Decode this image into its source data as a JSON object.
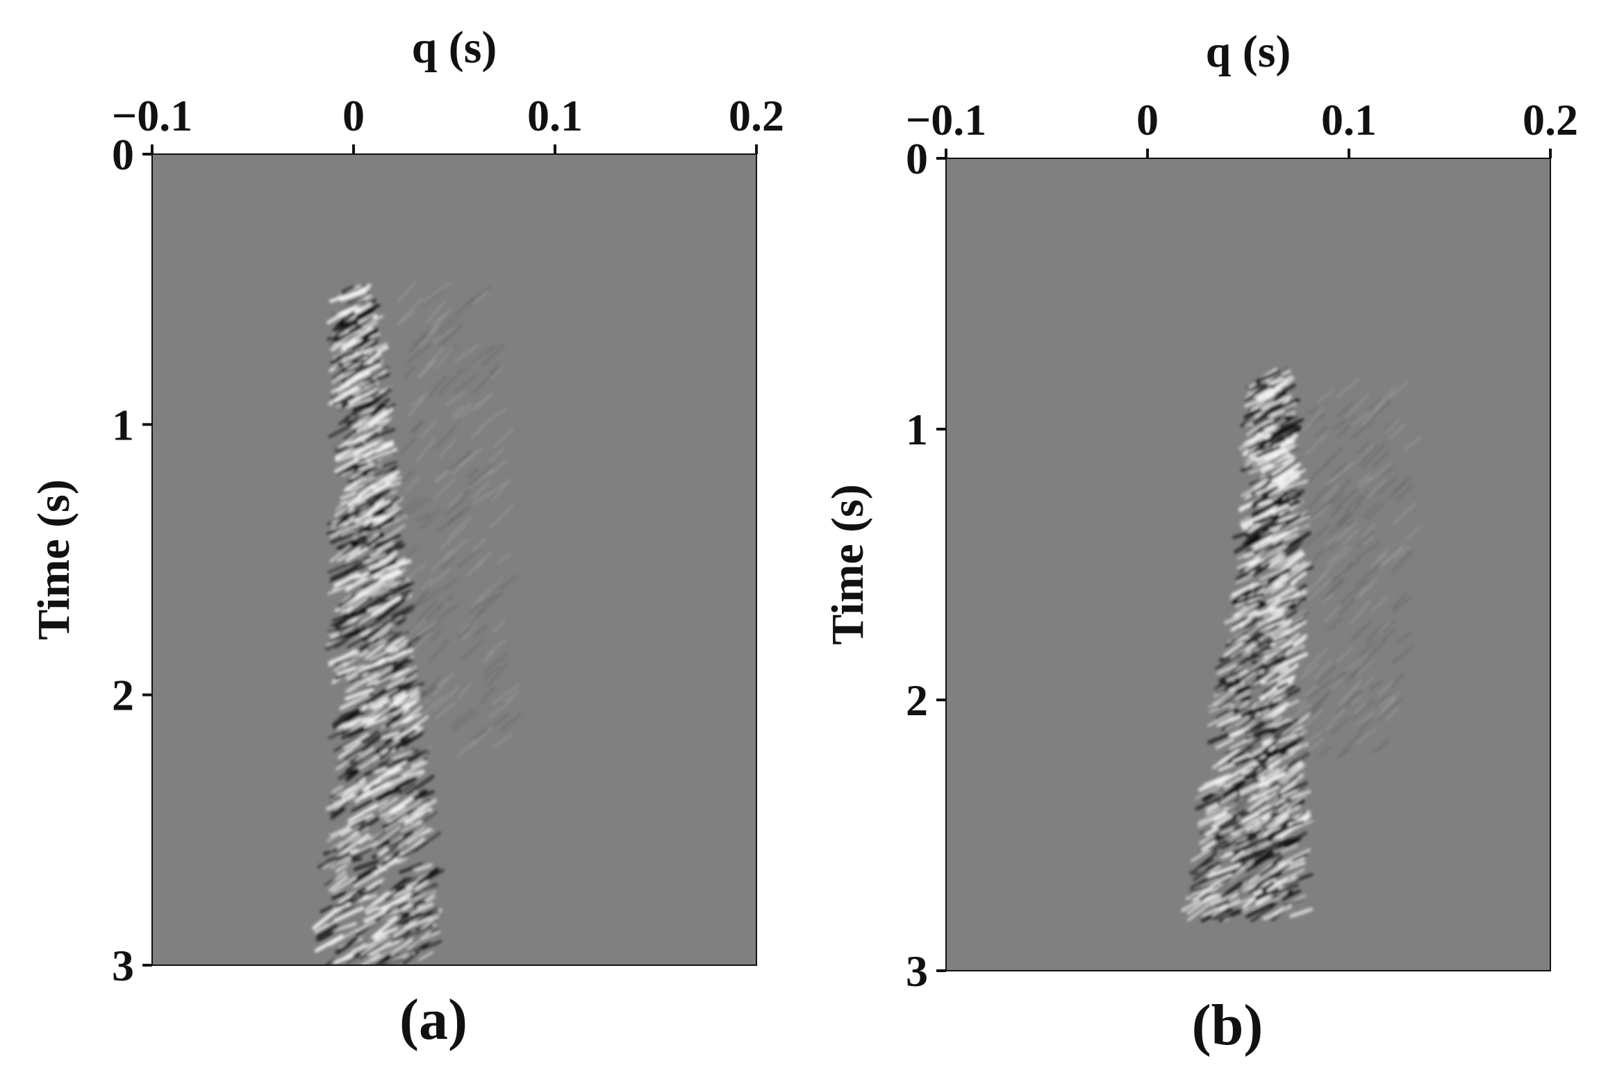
{
  "chart_data": [
    {
      "type": "heatmap",
      "panel_label": "(a)",
      "xlabel": "q (s)",
      "ylabel": "Time (s)",
      "xlim": [
        -0.1,
        0.2
      ],
      "ylim": [
        0,
        3
      ],
      "y_inverted": true,
      "xticks": [
        -0.1,
        0,
        0.1,
        0.2
      ],
      "xtick_labels": [
        "−0.1",
        "0",
        "0.1",
        "0.2"
      ],
      "yticks": [
        0,
        1,
        2,
        3
      ],
      "ytick_labels": [
        "0",
        "1",
        "2",
        "3"
      ],
      "x_axis_position": "top",
      "background_color": "#808080",
      "colormap": "gray",
      "event_trace": [
        {
          "t": 0.5,
          "q": 0.0
        },
        {
          "t": 1.0,
          "q": 0.005
        },
        {
          "t": 1.5,
          "q": 0.008
        },
        {
          "t": 2.0,
          "q": 0.012
        },
        {
          "t": 2.5,
          "q": 0.014
        },
        {
          "t": 3.0,
          "q": 0.012
        }
      ]
    },
    {
      "type": "heatmap",
      "panel_label": "(b)",
      "xlabel": "q (s)",
      "ylabel": "Time (s)",
      "xlim": [
        -0.1,
        0.2
      ],
      "ylim": [
        0,
        3
      ],
      "y_inverted": true,
      "xticks": [
        -0.1,
        0,
        0.1,
        0.2
      ],
      "xtick_labels": [
        "−0.1",
        "0",
        "0.1",
        "0.2"
      ],
      "yticks": [
        0,
        1,
        2,
        3
      ],
      "ytick_labels": [
        "0",
        "1",
        "2",
        "3"
      ],
      "x_axis_position": "top",
      "background_color": "#808080",
      "colormap": "gray",
      "event_trace": [
        {
          "t": 0.8,
          "q": 0.06
        },
        {
          "t": 1.0,
          "q": 0.062
        },
        {
          "t": 1.5,
          "q": 0.062
        },
        {
          "t": 2.0,
          "q": 0.056
        },
        {
          "t": 2.5,
          "q": 0.052
        },
        {
          "t": 2.8,
          "q": 0.05
        }
      ]
    }
  ]
}
